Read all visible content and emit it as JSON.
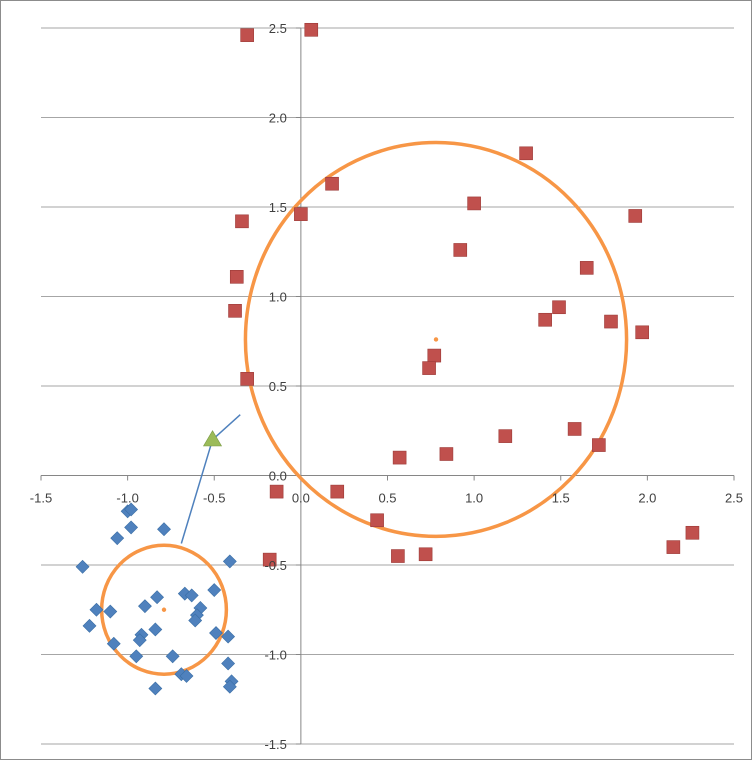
{
  "chart_data": {
    "type": "scatter",
    "xlim": [
      -1.5,
      2.5
    ],
    "ylim": [
      -1.5,
      2.5
    ],
    "x_ticks": [
      "-1.5",
      "-1.0",
      "-0.5",
      "0.0",
      "0.5",
      "1.0",
      "1.5",
      "2.0",
      "2.5"
    ],
    "y_ticks": [
      "-1.5",
      "-1.0",
      "-0.5",
      "0.0",
      "0.5",
      "1.0",
      "1.5",
      "2.0",
      "2.5"
    ],
    "grid": "horizontal",
    "legend": "none",
    "colors": {
      "diamond": "#4f81bd",
      "square": "#c0504d",
      "triangle": "#9bbb59",
      "circle": "#f79646",
      "link": "#4f81bd",
      "grid": "#a6a6a6",
      "axis": "#868686"
    },
    "series": [
      {
        "marker": "diamond",
        "points": [
          [
            -1.0,
            -0.2
          ],
          [
            -0.98,
            -0.19
          ],
          [
            -0.98,
            -0.29
          ],
          [
            -0.79,
            -0.3
          ],
          [
            -1.06,
            -0.35
          ],
          [
            -1.26,
            -0.51
          ],
          [
            -0.41,
            -0.48
          ],
          [
            -1.18,
            -0.75
          ],
          [
            -1.1,
            -0.76
          ],
          [
            -0.9,
            -0.73
          ],
          [
            -0.83,
            -0.68
          ],
          [
            -0.67,
            -0.66
          ],
          [
            -0.63,
            -0.67
          ],
          [
            -0.58,
            -0.74
          ],
          [
            -0.6,
            -0.78
          ],
          [
            -0.61,
            -0.81
          ],
          [
            -0.5,
            -0.64
          ],
          [
            -1.22,
            -0.84
          ],
          [
            -0.84,
            -0.86
          ],
          [
            -0.92,
            -0.89
          ],
          [
            -0.93,
            -0.92
          ],
          [
            -1.08,
            -0.94
          ],
          [
            -0.49,
            -0.88
          ],
          [
            -0.42,
            -0.9
          ],
          [
            -0.95,
            -1.01
          ],
          [
            -0.74,
            -1.01
          ],
          [
            -0.42,
            -1.05
          ],
          [
            -0.69,
            -1.11
          ],
          [
            -0.66,
            -1.12
          ],
          [
            -0.4,
            -1.15
          ],
          [
            -0.41,
            -1.18
          ],
          [
            -0.84,
            -1.19
          ]
        ]
      },
      {
        "marker": "square",
        "points": [
          [
            -0.31,
            2.46
          ],
          [
            0.06,
            2.49
          ],
          [
            1.3,
            1.8
          ],
          [
            0.18,
            1.63
          ],
          [
            1.0,
            1.52
          ],
          [
            1.93,
            1.45
          ],
          [
            0.0,
            1.46
          ],
          [
            -0.34,
            1.42
          ],
          [
            0.92,
            1.26
          ],
          [
            1.65,
            1.16
          ],
          [
            -0.37,
            1.11
          ],
          [
            -0.38,
            0.92
          ],
          [
            1.49,
            0.94
          ],
          [
            1.41,
            0.87
          ],
          [
            1.79,
            0.86
          ],
          [
            1.97,
            0.8
          ],
          [
            0.77,
            0.67
          ],
          [
            0.74,
            0.6
          ],
          [
            -0.31,
            0.54
          ],
          [
            1.18,
            0.22
          ],
          [
            1.58,
            0.26
          ],
          [
            1.72,
            0.17
          ],
          [
            0.57,
            0.1
          ],
          [
            0.84,
            0.12
          ],
          [
            -0.14,
            -0.09
          ],
          [
            0.21,
            -0.09
          ],
          [
            0.44,
            -0.25
          ],
          [
            -0.18,
            -0.47
          ],
          [
            0.56,
            -0.45
          ],
          [
            0.72,
            -0.44
          ],
          [
            2.15,
            -0.4
          ],
          [
            2.26,
            -0.32
          ]
        ]
      },
      {
        "marker": "triangle",
        "points": [
          [
            -0.51,
            0.2
          ]
        ]
      },
      {
        "marker": "center",
        "points": [
          [
            0.78,
            0.76
          ],
          [
            -0.79,
            -0.75
          ]
        ]
      }
    ],
    "circles": [
      {
        "center": [
          0.78,
          0.76
        ],
        "radius": 1.1
      },
      {
        "center": [
          -0.79,
          -0.75
        ],
        "radius": 0.36
      }
    ],
    "links": [
      {
        "from": [
          -0.51,
          0.2
        ],
        "to": [
          -0.35,
          0.34
        ]
      },
      {
        "from": [
          -0.51,
          0.2
        ],
        "to": [
          -0.69,
          -0.38
        ]
      }
    ]
  }
}
